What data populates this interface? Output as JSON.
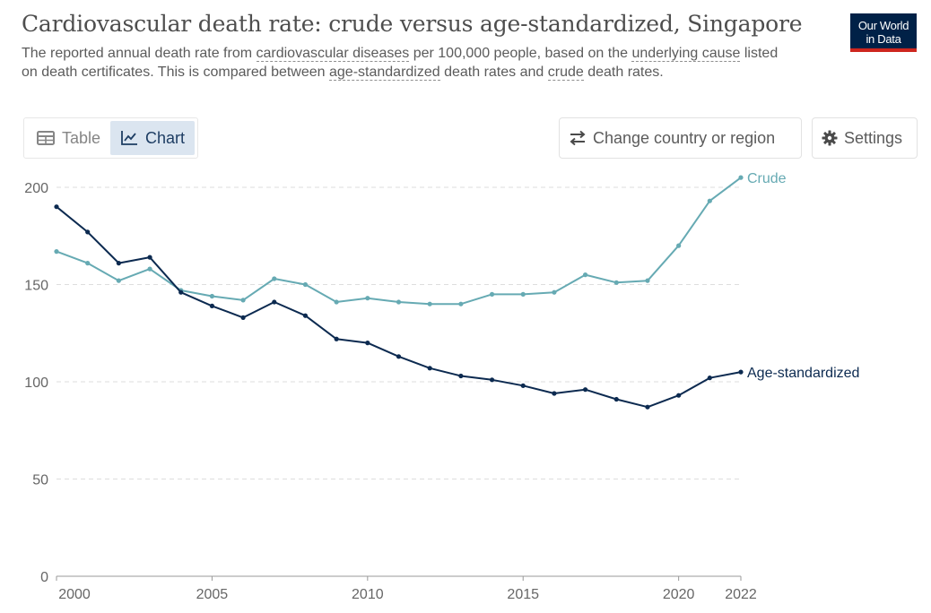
{
  "header": {
    "title": "Cardiovascular death rate: crude versus age-standardized, Singapore",
    "subtitle_parts": [
      "The reported annual death rate from ",
      "cardiovascular diseases",
      " per 100,000 people, based on the ",
      "underlying cause",
      " listed on death certificates. This is compared between ",
      "age-standardized",
      " death rates and ",
      "crude",
      " death rates."
    ],
    "logo_line1": "Our World",
    "logo_line2": "in Data"
  },
  "controls": {
    "table_label": "Table",
    "chart_label": "Chart",
    "change_country_label": "Change country or region",
    "settings_label": "Settings",
    "icons": [
      "table-icon",
      "chart-icon",
      "swap-arrows-icon",
      "gear-icon"
    ]
  },
  "colors": {
    "crude": "#66aab3",
    "age_standardized": "#0c2a50",
    "grid": "#dddddd",
    "accent": "#002147",
    "logo_stripe": "#ce261e"
  },
  "chart_data": {
    "type": "line",
    "title": "Cardiovascular death rate: crude versus age-standardized, Singapore",
    "x": [
      2000,
      2001,
      2002,
      2003,
      2004,
      2005,
      2006,
      2007,
      2008,
      2009,
      2010,
      2011,
      2012,
      2013,
      2014,
      2015,
      2016,
      2017,
      2018,
      2019,
      2020,
      2021,
      2022
    ],
    "series": [
      {
        "name": "Crude",
        "values": [
          167,
          161,
          152,
          158,
          147,
          144,
          142,
          153,
          150,
          141,
          143,
          141,
          140,
          140,
          145,
          145,
          146,
          155,
          151,
          152,
          170,
          193,
          205
        ]
      },
      {
        "name": "Age-standardized",
        "values": [
          190,
          177,
          161,
          164,
          146,
          139,
          133,
          141,
          134,
          122,
          120,
          113,
          107,
          103,
          101,
          98,
          94,
          96,
          91,
          87,
          93,
          102,
          105
        ]
      }
    ],
    "xlim": [
      2000,
      2022
    ],
    "ylim": [
      0,
      200
    ],
    "y_ticks": [
      0,
      50,
      100,
      150,
      200
    ],
    "x_ticks": [
      2000,
      2005,
      2010,
      2015,
      2020,
      2022
    ],
    "grid": "horizontal dashed",
    "legend": "line-end labels"
  }
}
